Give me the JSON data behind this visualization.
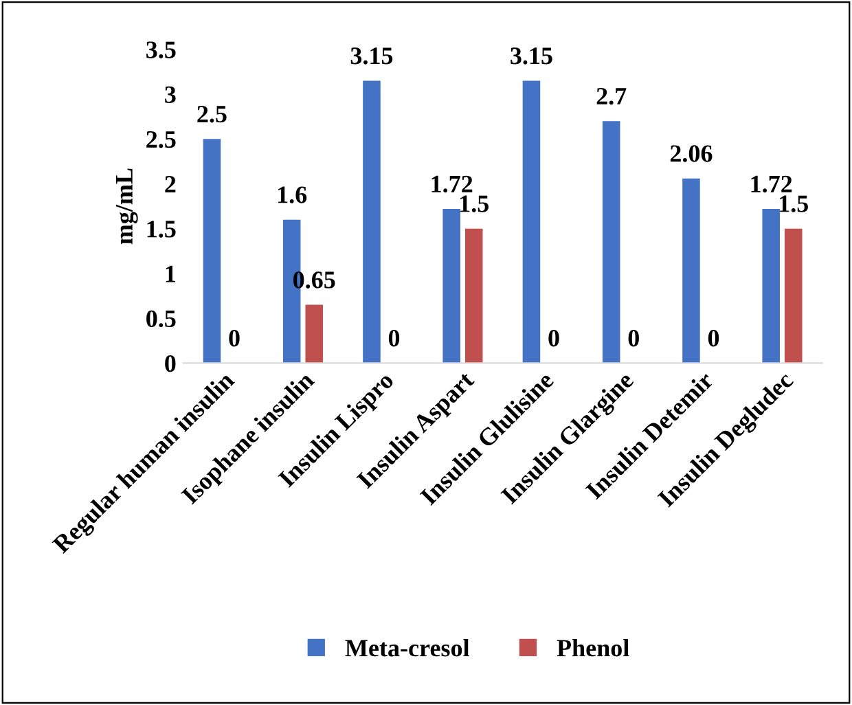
{
  "chart_data": {
    "type": "bar",
    "ylabel": "mg/mL",
    "categories": [
      "Regular human insulin",
      "Isophane insulin",
      "Insulin Lispro",
      "Insulin Aspart",
      "Insulin Glulisine",
      "Insulin Glargine",
      "Insulin Detemir",
      "Insulin Degludec"
    ],
    "series": [
      {
        "name": "Meta-cresol",
        "color": "#4472c4",
        "values": [
          2.5,
          1.6,
          3.15,
          1.72,
          3.15,
          2.7,
          2.06,
          1.72
        ]
      },
      {
        "name": "Phenol",
        "color": "#c0504d",
        "values": [
          0,
          0.65,
          0,
          1.5,
          0,
          0,
          0,
          1.5
        ]
      }
    ],
    "ylim": [
      0,
      3.5
    ],
    "yticks": [
      0,
      0.5,
      1,
      1.5,
      2,
      2.5,
      3,
      3.5
    ],
    "data_labels": true,
    "grid": false,
    "legend": "bottom"
  }
}
